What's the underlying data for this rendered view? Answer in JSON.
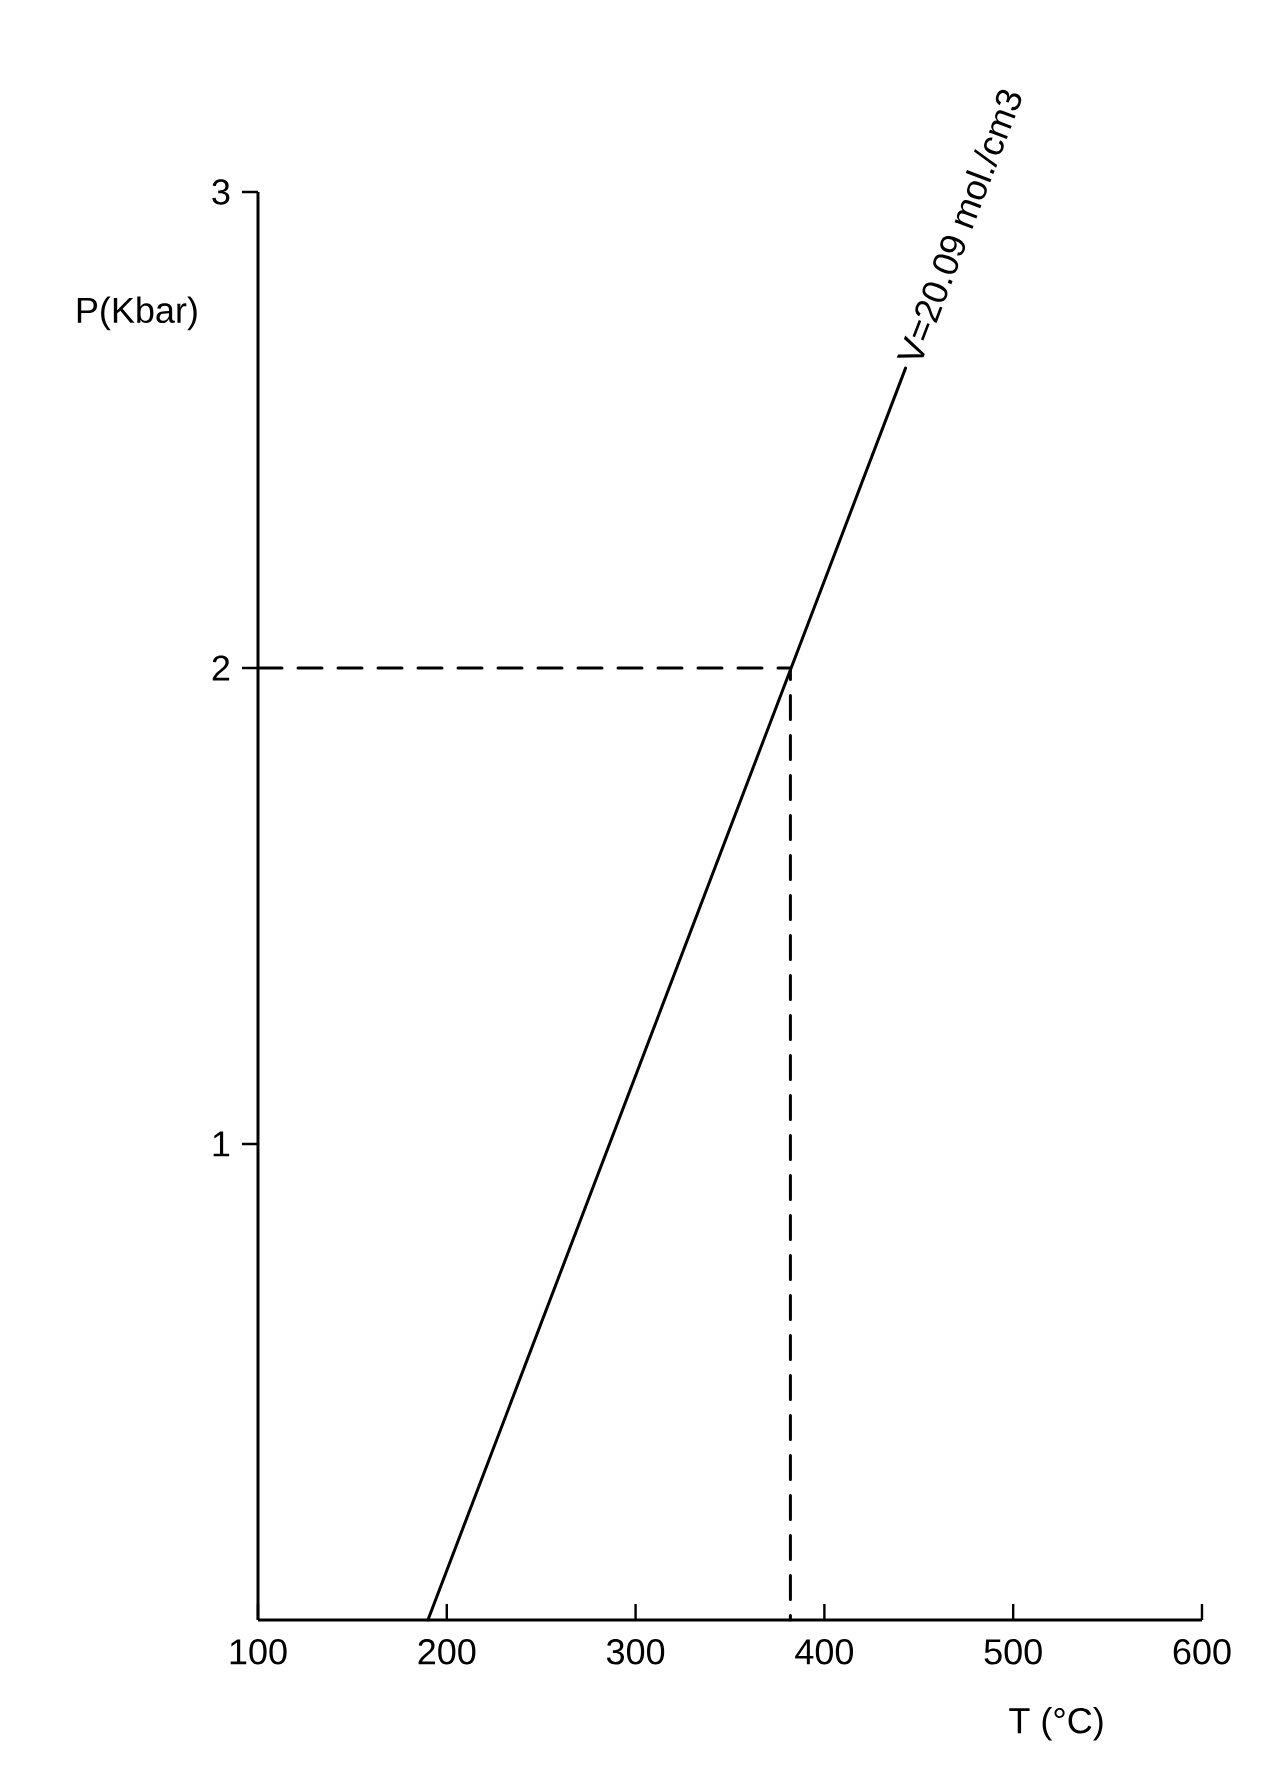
{
  "chart_data": {
    "type": "line",
    "xlabel": "T (°C)",
    "ylabel": "P(Kbar)",
    "xlim": [
      100,
      600
    ],
    "xticks": [
      100,
      200,
      300,
      400,
      500,
      600
    ],
    "ylim": [
      0,
      3
    ],
    "yticks": [
      1,
      2,
      3
    ],
    "series": [
      {
        "x": [
          190,
          443
        ],
        "values": [
          0,
          2.63
        ],
        "color": "#000000",
        "line_style": "solid"
      },
      {
        "x": [
          100,
          382,
          382
        ],
        "values": [
          2,
          2,
          0
        ],
        "color": "#000000",
        "line_style": "dashed"
      }
    ],
    "annotations": [
      {
        "text": "V=20.09 mol./cm3",
        "x": 443,
        "y": 2.63
      }
    ]
  }
}
